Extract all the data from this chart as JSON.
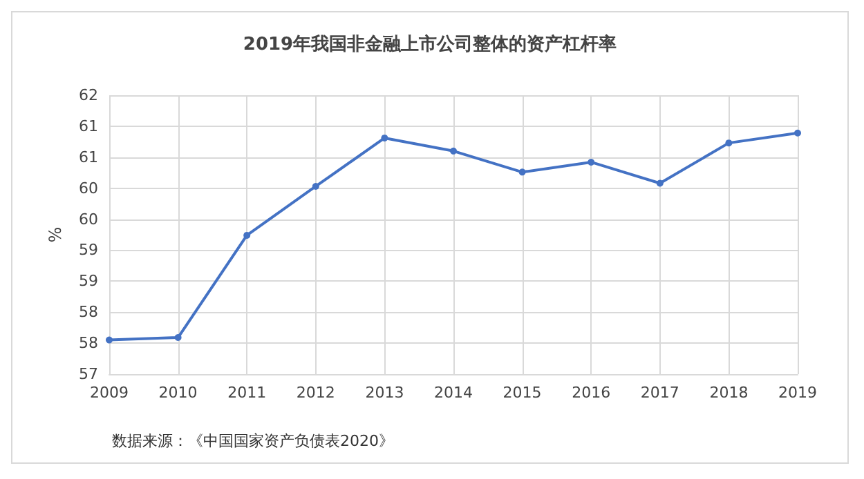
{
  "chart_data": {
    "type": "line",
    "title": "2019年我国非金融上市公司整体的资产杠杆率",
    "ylabel": "%",
    "categories": [
      "2009",
      "2010",
      "2011",
      "2012",
      "2013",
      "2014",
      "2015",
      "2016",
      "2017",
      "2018",
      "2019"
    ],
    "series": [
      {
        "color": "#4472c4",
        "values": [
          57.55,
          57.59,
          59.24,
          60.03,
          60.81,
          60.6,
          60.26,
          60.42,
          60.08,
          60.73,
          60.89
        ]
      }
    ],
    "ylim": [
      57,
      61.5
    ],
    "yticks": [
      57,
      {
        "value": 57.5,
        "label": "58"
      },
      58,
      {
        "value": 58.5,
        "label": "59"
      },
      59,
      {
        "value": 59.5,
        "label": "60"
      },
      60,
      {
        "value": 60.5,
        "label": "61"
      },
      61,
      {
        "value": 61.5,
        "label": "62"
      }
    ],
    "grid": true,
    "marker": "circle",
    "line_style": "solid",
    "annotations": [
      "数据来源：《中国国家资产负债表2020》"
    ]
  }
}
